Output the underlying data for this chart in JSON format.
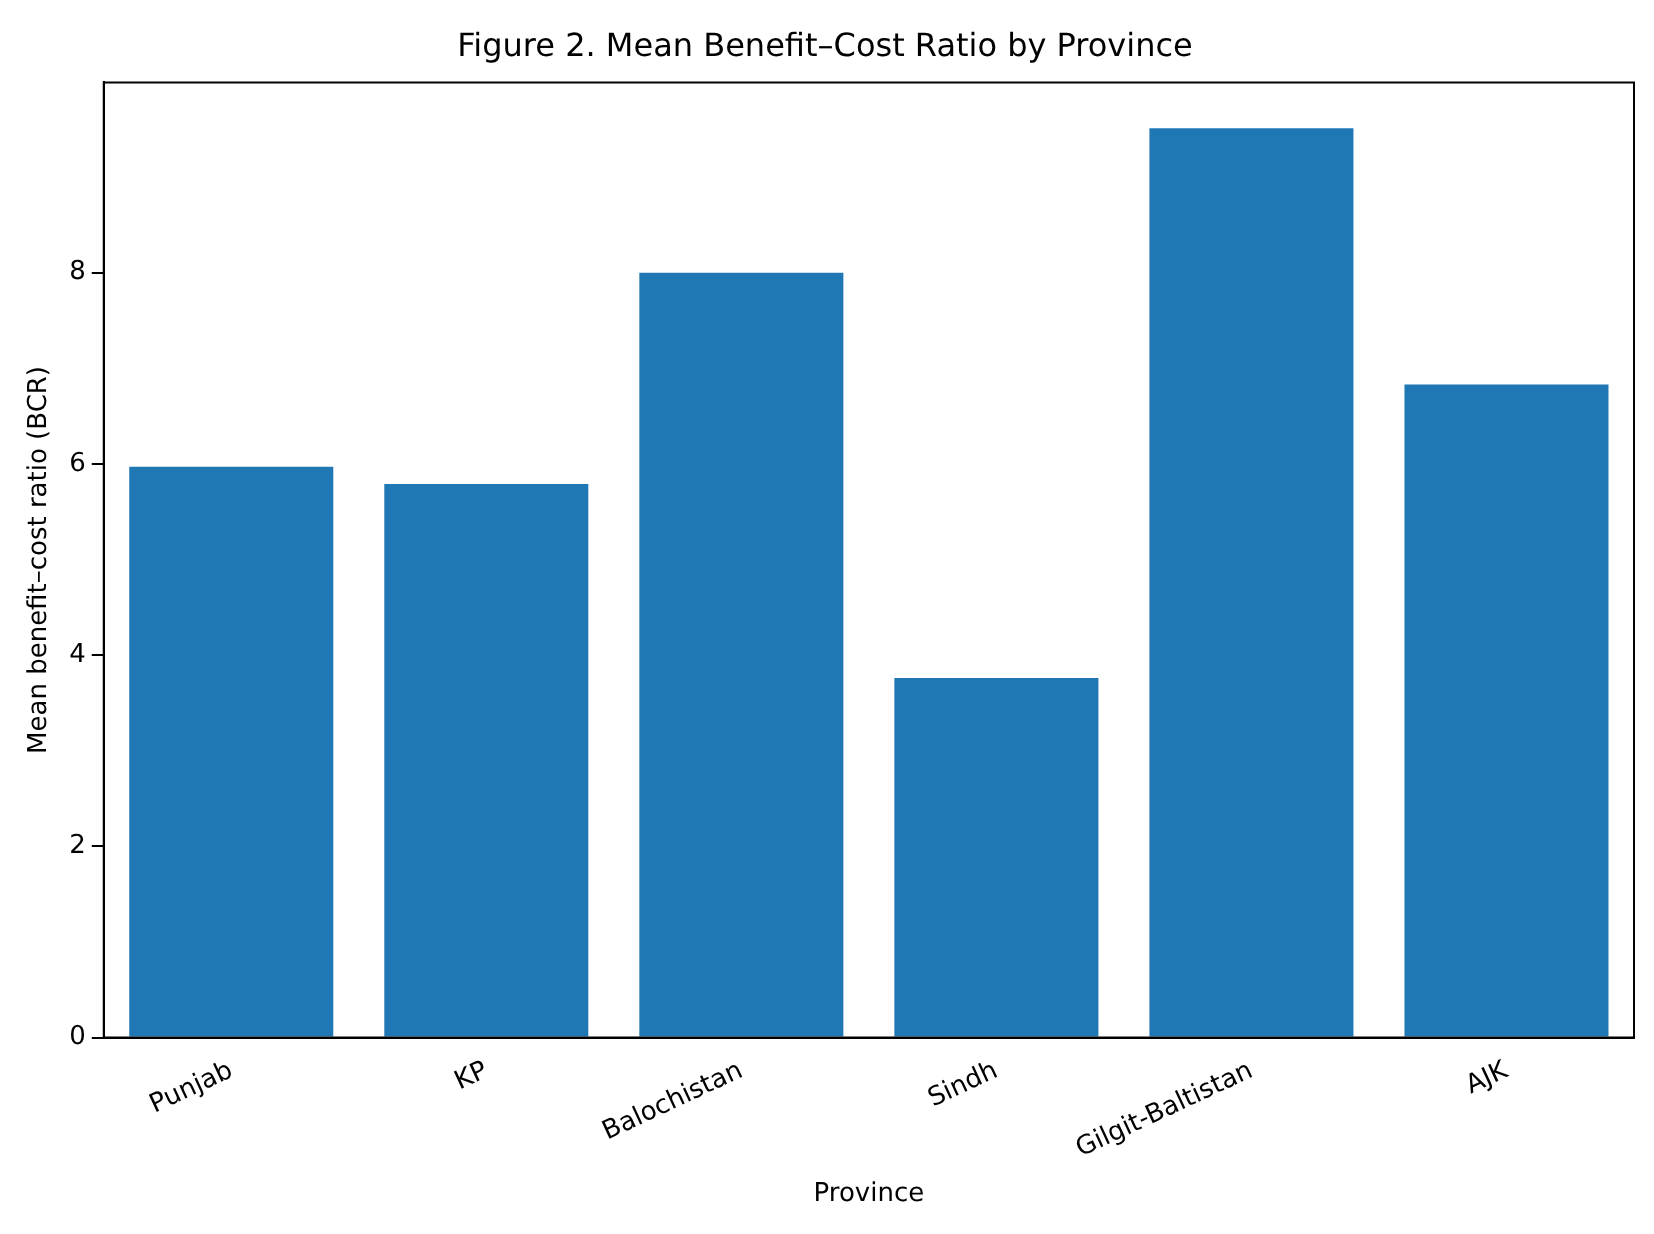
{
  "chart_data": {
    "type": "bar",
    "title": "Figure 2. Mean Benefit–Cost Ratio by Province",
    "xlabel": "Province",
    "ylabel": "Mean benefit–cost ratio (BCR)",
    "categories": [
      "Punjab",
      "KP",
      "Balochistan",
      "Sindh",
      "Gilgit-Baltistan",
      "AJK"
    ],
    "values": [
      5.97,
      5.79,
      8.0,
      3.76,
      9.51,
      6.83
    ],
    "color": "#1f77b4",
    "ylim": [
      0,
      9.99
    ],
    "yticks": [
      0,
      2,
      4,
      6,
      8
    ],
    "grid": false,
    "legend": false
  }
}
